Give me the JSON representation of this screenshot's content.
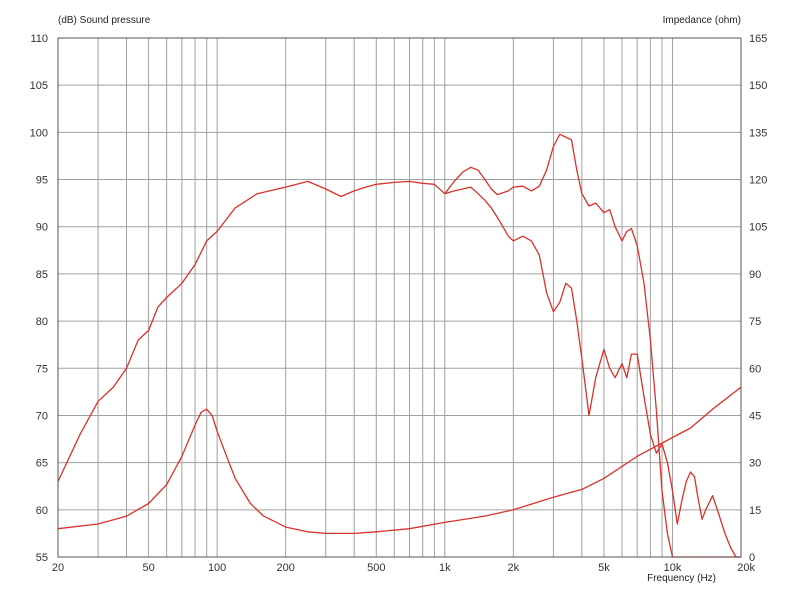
{
  "chart_data": {
    "type": "line",
    "x_scale": "log",
    "xlim": [
      20,
      20000
    ],
    "ylim_left": [
      55,
      110
    ],
    "ylim_right": [
      0,
      165
    ],
    "grid": true,
    "ylabel_left": "(dB)  Sound pressure",
    "ylabel_right": "Impedance  (ohm)",
    "xlabel": "Frequency  (Hz)",
    "x_ticks": [
      {
        "value": 20,
        "label": "20"
      },
      {
        "value": 50,
        "label": "50"
      },
      {
        "value": 100,
        "label": "100"
      },
      {
        "value": 200,
        "label": "200"
      },
      {
        "value": 500,
        "label": "500"
      },
      {
        "value": 1000,
        "label": "1k"
      },
      {
        "value": 2000,
        "label": "2k"
      },
      {
        "value": 5000,
        "label": "5k"
      },
      {
        "value": 10000,
        "label": "10k"
      },
      {
        "value": 20000,
        "label": "20k"
      }
    ],
    "y_ticks_left": [
      "55",
      "60",
      "65",
      "70",
      "75",
      "80",
      "85",
      "90",
      "95",
      "100",
      "105",
      "110"
    ],
    "y_ticks_right": [
      "0",
      "15",
      "30",
      "45",
      "60",
      "75",
      "90",
      "105",
      "120",
      "135",
      "150",
      "165"
    ],
    "line_color": "#d9312b",
    "grid_color": "#a0a0a0",
    "series": [
      {
        "axis": "left",
        "x": [
          20,
          25,
          30,
          35,
          40,
          45,
          50,
          55,
          60,
          70,
          80,
          90,
          100,
          120,
          150,
          200,
          250,
          300,
          350,
          400,
          450,
          500,
          600,
          700,
          800,
          900,
          1000,
          1100,
          1200,
          1300,
          1400,
          1500,
          1600,
          1700,
          1800,
          1900,
          2000,
          2200,
          2400,
          2600,
          2800,
          3000,
          3200,
          3400,
          3600,
          3800,
          4000,
          4300,
          4600,
          5000,
          5300,
          5600,
          6000,
          6300,
          6600,
          7000,
          7500,
          8000,
          8500,
          9000,
          9500,
          10000,
          10500,
          11000,
          11500,
          12000,
          12500,
          13000,
          13500,
          14000,
          15000,
          16000,
          17000,
          18000,
          19000,
          20000
        ],
        "y": [
          63,
          68,
          71.5,
          73,
          75,
          78,
          79,
          81.5,
          82.5,
          84,
          86,
          88.5,
          89.5,
          92,
          93.5,
          94.2,
          94.8,
          94,
          93.2,
          93.8,
          94.2,
          94.5,
          94.7,
          94.8,
          94.6,
          94.5,
          93.5,
          94.8,
          95.8,
          96.3,
          96,
          95,
          94,
          93.4,
          93.6,
          93.8,
          94.2,
          94.3,
          93.8,
          94.3,
          96,
          98.5,
          99.8,
          99.5,
          99.2,
          96,
          93.5,
          92.2,
          92.5,
          91.5,
          91.8,
          90,
          88.5,
          89.5,
          89.8,
          88,
          84,
          78,
          70.5,
          62,
          57.5,
          55,
          55,
          55,
          55,
          55,
          55,
          55,
          55,
          55,
          55,
          55,
          55,
          55,
          55,
          55
        ]
      },
      {
        "axis": "left",
        "x": [
          1000,
          1100,
          1200,
          1300,
          1400,
          1500,
          1600,
          1700,
          1800,
          1900,
          2000,
          2200,
          2400,
          2600,
          2800,
          3000,
          3200,
          3400,
          3600,
          3800,
          4000,
          4300,
          4600,
          5000,
          5300,
          5600,
          6000,
          6300,
          6600,
          7000,
          7500,
          8000,
          8500,
          9000,
          9500,
          10000,
          10500,
          11000,
          11500,
          12000,
          12500,
          13000,
          13500,
          14000,
          15000,
          16000,
          17000,
          18000,
          19000,
          20000
        ],
        "y": [
          93.5,
          93.8,
          94,
          94.2,
          93.5,
          92.8,
          92,
          91,
          90,
          89,
          88.5,
          89,
          88.5,
          87,
          83,
          81,
          82,
          84,
          83.5,
          80,
          76,
          70,
          74,
          77,
          75,
          74,
          75.5,
          74,
          76.5,
          76.5,
          72,
          68,
          66,
          67,
          65,
          62,
          58.5,
          61,
          63,
          64,
          63.5,
          61,
          59,
          60,
          61.5,
          59.5,
          57.5,
          56,
          55,
          55
        ]
      },
      {
        "axis": "right",
        "x": [
          20,
          30,
          40,
          50,
          60,
          70,
          80,
          85,
          90,
          95,
          100,
          110,
          120,
          140,
          160,
          200,
          250,
          300,
          400,
          500,
          700,
          1000,
          1500,
          2000,
          3000,
          4000,
          5000,
          7000,
          10000,
          12000,
          15000,
          20000
        ],
        "y": [
          9,
          10.5,
          13,
          17,
          23,
          32,
          42,
          46,
          47,
          45,
          40,
          32,
          25,
          17,
          13,
          9.5,
          8,
          7.5,
          7.5,
          8,
          9,
          11,
          13,
          15,
          19,
          21.5,
          25,
          32,
          38,
          41,
          47,
          54
        ]
      }
    ]
  }
}
